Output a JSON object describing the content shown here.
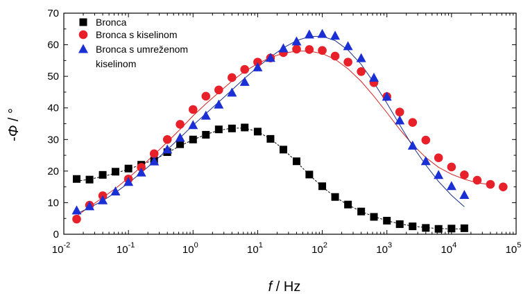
{
  "chart_data": {
    "type": "scatter",
    "xlabel_italic": "f",
    "xlabel_rest": " / Hz",
    "ylabel_prefix": "-",
    "ylabel_italic": "Φ",
    "ylabel_rest": " / °",
    "xscale": "log",
    "xlim": [
      0.01,
      100000
    ],
    "ylim": [
      0,
      70
    ],
    "grid": false,
    "legend_position": "top-left",
    "yticks": [
      "0",
      "10",
      "20",
      "30",
      "40",
      "50",
      "60",
      "70"
    ],
    "xticks": [
      {
        "base": "10",
        "exp": "-2"
      },
      {
        "base": "10",
        "exp": "-1"
      },
      {
        "base": "10",
        "exp": "0"
      },
      {
        "base": "10",
        "exp": "1"
      },
      {
        "base": "10",
        "exp": "2"
      },
      {
        "base": "10",
        "exp": "3"
      },
      {
        "base": "10",
        "exp": "4"
      },
      {
        "base": "10",
        "exp": "5"
      }
    ],
    "series": [
      {
        "name": "Bronca",
        "marker": "square",
        "color": "#000000",
        "fit_color": "#000000",
        "fit_style": "dashed",
        "x": [
          0.0158,
          0.025,
          0.04,
          0.063,
          0.1,
          0.158,
          0.25,
          0.4,
          0.63,
          1,
          1.58,
          2.5,
          4,
          6.3,
          10,
          15.8,
          25,
          40,
          63,
          100,
          158,
          250,
          400,
          630,
          1000,
          1580,
          2500,
          4000,
          6300,
          10000,
          15800
        ],
        "y": [
          17.5,
          17.3,
          18.8,
          19.8,
          20.8,
          22.0,
          23.3,
          26.0,
          28.5,
          30.0,
          31.5,
          33.2,
          33.5,
          33.8,
          32.5,
          30.2,
          26.8,
          23.1,
          18.9,
          15.2,
          11.8,
          9.4,
          7.2,
          5.5,
          4.3,
          3.2,
          2.5,
          2.0,
          1.7,
          1.8,
          1.9
        ],
        "fit_x": [
          0.0158,
          0.025,
          0.04,
          0.063,
          0.1,
          0.158,
          0.25,
          0.4,
          0.63,
          1,
          1.58,
          2.5,
          4,
          6.3,
          10,
          15.8,
          25,
          40,
          63,
          100,
          158,
          250,
          400,
          630,
          1000,
          1580,
          2500,
          4000,
          6300,
          10000,
          15800
        ],
        "fit_y": [
          16.8,
          17.4,
          18.3,
          19.3,
          20.6,
          22.0,
          23.6,
          25.8,
          28.0,
          29.9,
          31.6,
          32.9,
          33.6,
          33.6,
          32.5,
          30.2,
          26.9,
          22.9,
          18.8,
          15.0,
          11.8,
          9.3,
          7.2,
          5.6,
          4.3,
          3.3,
          2.6,
          2.1,
          1.8,
          1.7,
          1.7
        ]
      },
      {
        "name": "Bronca s kiselinom",
        "marker": "circle",
        "color": "#e8202a",
        "fit_color": "#d42020",
        "fit_style": "solid",
        "x": [
          0.0158,
          0.025,
          0.04,
          0.1,
          0.158,
          0.25,
          0.4,
          0.63,
          1,
          1.58,
          2.5,
          4,
          6.3,
          10,
          15.8,
          25,
          40,
          63,
          100,
          158,
          250,
          400,
          630,
          1000,
          1580,
          2500,
          4000,
          6300,
          10000,
          15800,
          25000,
          40000,
          63000
        ],
        "y": [
          4.8,
          9.2,
          12.2,
          17.5,
          21.2,
          25.5,
          30.0,
          34.8,
          39.5,
          43.7,
          45.7,
          49.6,
          52.2,
          54.5,
          55.8,
          57.5,
          58.6,
          58.5,
          58.2,
          56.4,
          54.5,
          51.5,
          48.0,
          43.6,
          38.7,
          35.4,
          29.8,
          24.2,
          21.3,
          18.8,
          17.1,
          15.8,
          15.0
        ],
        "fit_x": [
          0.0158,
          0.025,
          0.04,
          0.063,
          0.1,
          0.158,
          0.25,
          0.4,
          0.63,
          1,
          1.58,
          2.5,
          4,
          6.3,
          10,
          15.8,
          25,
          40,
          63,
          100,
          158,
          250,
          400,
          630,
          1000,
          1580,
          2500,
          4000,
          6300,
          10000,
          15800,
          25000,
          40000,
          63000
        ],
        "fit_y": [
          5.8,
          8.7,
          11.6,
          14.5,
          17.8,
          21.4,
          25.2,
          29.2,
          33.2,
          37.5,
          41.3,
          44.9,
          48.5,
          51.6,
          54.0,
          56.0,
          57.3,
          58.0,
          58.0,
          57.2,
          55.4,
          52.4,
          48.4,
          43.7,
          38.5,
          33.2,
          28.4,
          24.3,
          21.2,
          19.0,
          17.4,
          16.3,
          15.7
        ]
      },
      {
        "name": "Bronca s umreženom kiselinom",
        "legend_lines": [
          "Bronca s umreženom",
          "kiselinom"
        ],
        "marker": "triangle",
        "color": "#1a2fd4",
        "fit_color": "#1a2f8a",
        "fit_style": "solid",
        "x": [
          0.0158,
          0.025,
          0.04,
          0.063,
          0.1,
          0.158,
          0.25,
          0.4,
          0.63,
          1,
          1.58,
          2.5,
          4,
          6.3,
          10,
          15.8,
          25,
          40,
          63,
          100,
          158,
          250,
          400,
          630,
          1000,
          1580,
          2500,
          4000,
          6300,
          10000,
          15800
        ],
        "y": [
          7.5,
          8.8,
          10.7,
          13.5,
          16.5,
          19.5,
          23.0,
          26.8,
          30.5,
          34.5,
          37.5,
          41.0,
          44.8,
          48.2,
          52.8,
          55.8,
          58.8,
          61.0,
          63.2,
          63.4,
          62.8,
          59.5,
          55.7,
          49.5,
          43.5,
          36.0,
          28.0,
          23.1,
          18.7,
          15.2,
          12.4
        ],
        "fit_x": [
          0.0158,
          0.025,
          0.04,
          0.063,
          0.1,
          0.158,
          0.25,
          0.4,
          0.63,
          1,
          1.58,
          2.5,
          4,
          6.3,
          10,
          15.8,
          25,
          40,
          63,
          100,
          158,
          250,
          400,
          630,
          1000,
          1580,
          2500,
          4000,
          6300,
          10000,
          15800
        ],
        "fit_y": [
          6.5,
          8.4,
          10.6,
          13.2,
          16.2,
          19.5,
          23.0,
          26.8,
          30.6,
          34.5,
          38.2,
          41.9,
          45.7,
          49.4,
          52.9,
          56.1,
          59.0,
          61.3,
          62.6,
          62.7,
          61.3,
          58.3,
          53.8,
          48.0,
          41.5,
          34.6,
          27.9,
          21.9,
          16.7,
          12.3,
          8.7
        ]
      }
    ]
  }
}
